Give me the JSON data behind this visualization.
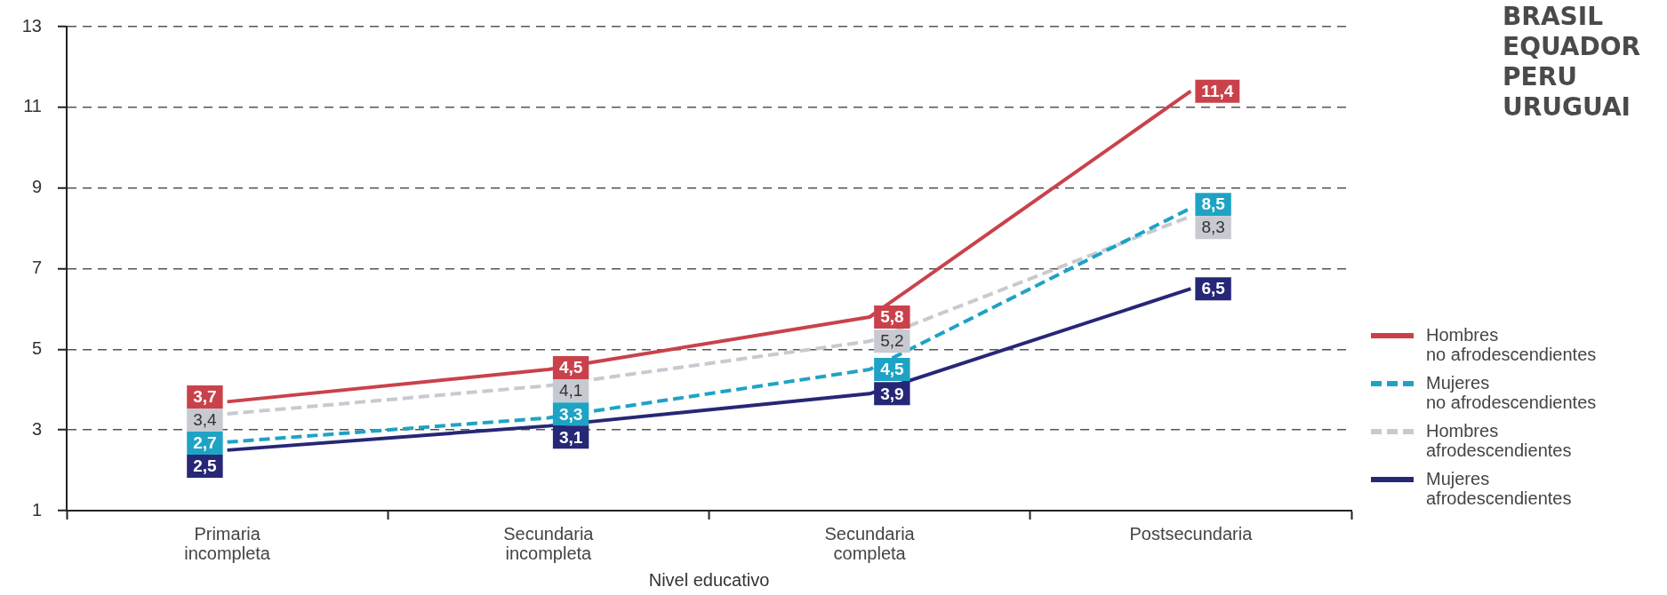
{
  "chart_data": {
    "type": "line",
    "xlabel": "Nivel educativo",
    "categories": [
      "Primaria incompleta",
      "Secundaria incompleta",
      "Secundaria completa",
      "Postsecundaria"
    ],
    "series": [
      {
        "name": "Hombres no afrodescendientes",
        "color": "#c9424b",
        "line_style": "solid",
        "values": [
          3.7,
          4.5,
          5.8,
          11.4
        ],
        "value_labels": [
          "3,7",
          "4,5",
          "5,8",
          "11,4"
        ]
      },
      {
        "name": "Mujeres no afrodescendientes",
        "color": "#1fa3c4",
        "line_style": "dashed",
        "values": [
          2.7,
          3.3,
          4.5,
          8.5
        ],
        "value_labels": [
          "2,7",
          "3,3",
          "4,5",
          "8,5"
        ]
      },
      {
        "name": "Hombres afrodescendientes",
        "color": "#c8cad2",
        "line_style": "dashed",
        "values": [
          3.4,
          4.1,
          5.2,
          8.3
        ],
        "value_labels": [
          "3,4",
          "4,1",
          "5,2",
          "8,3"
        ]
      },
      {
        "name": "Mujeres afrodescendientes",
        "color": "#272777",
        "line_style": "solid",
        "values": [
          2.5,
          3.1,
          3.9,
          6.5
        ],
        "value_labels": [
          "2,5",
          "3,1",
          "3,9",
          "6,5"
        ]
      }
    ],
    "ylim": [
      1,
      13
    ],
    "yticks": [
      1,
      3,
      5,
      7,
      9,
      11,
      13
    ],
    "grid": "y",
    "legend": "right",
    "annotations": [
      "BRASIL",
      "EQUADOR",
      "PERU",
      "URUGUAI"
    ]
  }
}
